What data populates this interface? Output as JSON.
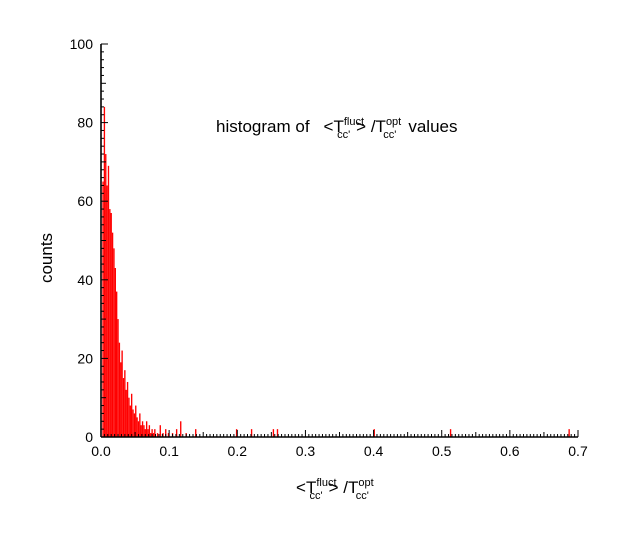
{
  "chart_data": {
    "type": "bar",
    "title": {
      "prefix": "histogram of",
      "lt": "<",
      "t1": "T",
      "t1_sup": "fluct",
      "t1_sub": "cc'",
      "gt_slash": "> /",
      "t2": "T",
      "t2_sup": "opt",
      "t2_sub": "cc'",
      "suffix": "values"
    },
    "xlabel": {
      "lt": "<",
      "t1": "T",
      "t1_sup": "fluct",
      "t1_sub": "cc'",
      "gt_slash": "> /",
      "t2": "T",
      "t2_sup": "opt",
      "t2_sub": "cc'"
    },
    "ylabel": "counts",
    "xlim": [
      0,
      0.7
    ],
    "ylim": [
      0,
      100
    ],
    "x_ticks": [
      "0.0",
      "0.1",
      "0.2",
      "0.3",
      "0.4",
      "0.5",
      "0.6",
      "0.7"
    ],
    "y_ticks": [
      "0",
      "20",
      "40",
      "60",
      "80",
      "100"
    ],
    "bin_width": 0.002,
    "bar_color": "#ff0000",
    "bins": [
      {
        "x": 0.003,
        "y": 65
      },
      {
        "x": 0.005,
        "y": 84
      },
      {
        "x": 0.007,
        "y": 72
      },
      {
        "x": 0.009,
        "y": 64
      },
      {
        "x": 0.011,
        "y": 69
      },
      {
        "x": 0.013,
        "y": 58
      },
      {
        "x": 0.015,
        "y": 57
      },
      {
        "x": 0.017,
        "y": 52
      },
      {
        "x": 0.019,
        "y": 48
      },
      {
        "x": 0.021,
        "y": 43
      },
      {
        "x": 0.023,
        "y": 37
      },
      {
        "x": 0.025,
        "y": 30
      },
      {
        "x": 0.027,
        "y": 24
      },
      {
        "x": 0.029,
        "y": 19
      },
      {
        "x": 0.031,
        "y": 22
      },
      {
        "x": 0.033,
        "y": 15
      },
      {
        "x": 0.035,
        "y": 17
      },
      {
        "x": 0.037,
        "y": 12
      },
      {
        "x": 0.039,
        "y": 14
      },
      {
        "x": 0.041,
        "y": 10
      },
      {
        "x": 0.043,
        "y": 8
      },
      {
        "x": 0.045,
        "y": 11
      },
      {
        "x": 0.047,
        "y": 7
      },
      {
        "x": 0.049,
        "y": 6
      },
      {
        "x": 0.051,
        "y": 8
      },
      {
        "x": 0.053,
        "y": 5
      },
      {
        "x": 0.055,
        "y": 4
      },
      {
        "x": 0.057,
        "y": 6
      },
      {
        "x": 0.059,
        "y": 3
      },
      {
        "x": 0.061,
        "y": 4
      },
      {
        "x": 0.063,
        "y": 3
      },
      {
        "x": 0.065,
        "y": 2
      },
      {
        "x": 0.067,
        "y": 4
      },
      {
        "x": 0.069,
        "y": 2
      },
      {
        "x": 0.071,
        "y": 3
      },
      {
        "x": 0.073,
        "y": 1
      },
      {
        "x": 0.075,
        "y": 2
      },
      {
        "x": 0.077,
        "y": 1
      },
      {
        "x": 0.079,
        "y": 2
      },
      {
        "x": 0.083,
        "y": 1
      },
      {
        "x": 0.087,
        "y": 3
      },
      {
        "x": 0.091,
        "y": 1
      },
      {
        "x": 0.095,
        "y": 2
      },
      {
        "x": 0.099,
        "y": 1
      },
      {
        "x": 0.105,
        "y": 1
      },
      {
        "x": 0.111,
        "y": 2
      },
      {
        "x": 0.117,
        "y": 4
      },
      {
        "x": 0.125,
        "y": 1
      },
      {
        "x": 0.139,
        "y": 2
      },
      {
        "x": 0.199,
        "y": 2
      },
      {
        "x": 0.221,
        "y": 2
      },
      {
        "x": 0.253,
        "y": 2
      },
      {
        "x": 0.259,
        "y": 2
      },
      {
        "x": 0.401,
        "y": 2
      },
      {
        "x": 0.513,
        "y": 2
      },
      {
        "x": 0.687,
        "y": 2
      }
    ]
  }
}
